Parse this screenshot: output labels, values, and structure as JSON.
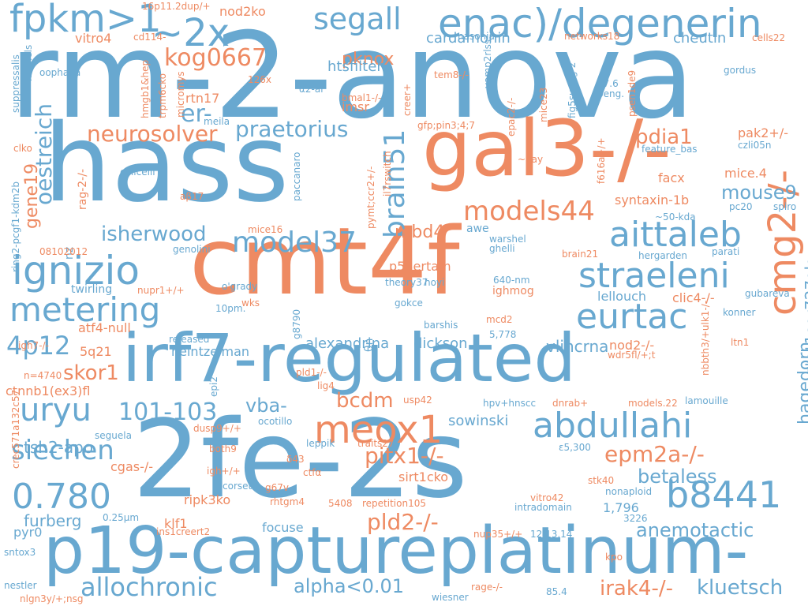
{
  "palette": {
    "blue": "#68a8d0",
    "orange": "#ee8a62"
  },
  "words": [
    {
      "text": "rm-2-anova",
      "color": "blue"
    },
    {
      "text": "hass",
      "color": "blue"
    },
    {
      "text": "cmt4f",
      "color": "orange"
    },
    {
      "text": "2fe-2s",
      "color": "blue"
    },
    {
      "text": "irf7-regulated",
      "color": "blue"
    },
    {
      "text": "gal3-/-",
      "color": "orange"
    },
    {
      "text": "p19-captureplatinum-",
      "color": "blue"
    },
    {
      "text": "enac)/degenerin",
      "color": "blue"
    },
    {
      "text": "fpkm>1",
      "color": "blue"
    },
    {
      "text": "~2x",
      "color": "blue"
    },
    {
      "text": "segall",
      "color": "blue"
    },
    {
      "text": "aittaleb",
      "color": "blue"
    },
    {
      "text": "straeleni",
      "color": "blue"
    },
    {
      "text": "eurtac",
      "color": "blue"
    },
    {
      "text": "ignizio",
      "color": "blue"
    },
    {
      "text": "metering",
      "color": "blue"
    },
    {
      "text": "abdullahi",
      "color": "blue"
    },
    {
      "text": "b8441",
      "color": "blue"
    },
    {
      "text": "cmg2-/-",
      "color": "orange"
    },
    {
      "text": "meox1",
      "color": "orange"
    },
    {
      "text": "uryu",
      "color": "blue"
    },
    {
      "text": "0.780",
      "color": "blue"
    },
    {
      "text": "siechen",
      "color": "blue"
    },
    {
      "text": "model37",
      "color": "blue"
    },
    {
      "text": "models44",
      "color": "orange"
    },
    {
      "text": "kog0667",
      "color": "orange"
    },
    {
      "text": "brain51",
      "color": "blue"
    },
    {
      "text": "neurosolver",
      "color": "orange"
    },
    {
      "text": "praetorius",
      "color": "blue"
    },
    {
      "text": "oestreich",
      "color": "blue"
    },
    {
      "text": "isherwood",
      "color": "blue"
    },
    {
      "text": "allochronic",
      "color": "blue"
    },
    {
      "text": "kluetsch",
      "color": "blue"
    },
    {
      "text": "epm2a-/-",
      "color": "orange"
    },
    {
      "text": "pitx1-/-",
      "color": "orange"
    },
    {
      "text": "pld2-/-",
      "color": "orange"
    },
    {
      "text": "4p12",
      "color": "blue"
    },
    {
      "text": "101-103",
      "color": "blue"
    },
    {
      "text": "mouse9",
      "color": "blue"
    },
    {
      "text": "pdia1",
      "color": "orange"
    },
    {
      "text": "er-",
      "color": "blue"
    },
    {
      "text": "pknox",
      "color": "orange"
    },
    {
      "text": "hagedorn",
      "color": "blue"
    },
    {
      "text": "anemotactic",
      "color": "blue"
    },
    {
      "text": "betaless",
      "color": "blue"
    },
    {
      "text": "irak4-/-",
      "color": "orange"
    },
    {
      "text": "alpha<0.01",
      "color": "blue"
    },
    {
      "text": "bcdm",
      "color": "orange"
    },
    {
      "text": "skor1",
      "color": "orange"
    },
    {
      "text": "mbd4",
      "color": "orange"
    },
    {
      "text": "gene19",
      "color": "orange"
    },
    {
      "text": "vba-",
      "color": "blue"
    },
    {
      "text": "tsh2-apo",
      "color": "blue"
    },
    {
      "text": "furberg",
      "color": "blue"
    },
    {
      "text": "stat1ser727ala",
      "color": "blue"
    },
    {
      "text": "alexandrina",
      "color": "blue"
    },
    {
      "text": "dickson",
      "color": "blue"
    },
    {
      "text": "vlincrna",
      "color": "blue"
    },
    {
      "text": "sowinski",
      "color": "blue"
    },
    {
      "text": "htsfilter",
      "color": "blue"
    },
    {
      "text": "cardamonin",
      "color": "blue"
    },
    {
      "text": "cheutin",
      "color": "blue"
    },
    {
      "text": "nod2ko",
      "color": "orange"
    },
    {
      "text": "imsr",
      "color": "orange"
    },
    {
      "text": "p53ertam",
      "color": "orange"
    },
    {
      "text": "syntaxin-1b",
      "color": "orange"
    },
    {
      "text": "facx",
      "color": "orange"
    },
    {
      "text": "mice.4",
      "color": "orange"
    },
    {
      "text": "pak2+/-",
      "color": "orange"
    },
    {
      "text": "lellouch",
      "color": "blue"
    },
    {
      "text": "clic4-/-",
      "color": "orange"
    },
    {
      "text": "nod2-/-",
      "color": "orange"
    },
    {
      "text": "atf4-null",
      "color": "orange"
    },
    {
      "text": "ctnnb1(ex3)fl",
      "color": "orange"
    },
    {
      "text": "rtn17",
      "color": "orange"
    },
    {
      "text": "vitro4",
      "color": "orange"
    },
    {
      "text": "5q21",
      "color": "orange"
    },
    {
      "text": "heintzelman",
      "color": "blue"
    },
    {
      "text": "sirt1cko",
      "color": "orange"
    },
    {
      "text": "ripk3ko",
      "color": "orange"
    },
    {
      "text": "klf1",
      "color": "orange"
    },
    {
      "text": "focuse",
      "color": "blue"
    },
    {
      "text": "cgas-/-",
      "color": "orange"
    },
    {
      "text": "pyr0",
      "color": "blue"
    },
    {
      "text": "1,796",
      "color": "blue"
    },
    {
      "text": "ighmog",
      "color": "orange"
    },
    {
      "text": "awe",
      "color": "blue"
    },
    {
      "text": "θn",
      "color": "blue"
    },
    {
      "text": "rag-2-/-",
      "color": "orange"
    },
    {
      "text": "nz",
      "color": "blue"
    },
    {
      "text": "mice16",
      "color": "orange"
    },
    {
      "text": "twirling",
      "color": "blue"
    },
    {
      "text": "nupr1+/+",
      "color": "orange"
    },
    {
      "text": "wks",
      "color": "orange"
    },
    {
      "text": "gokce",
      "color": "blue"
    },
    {
      "text": "barshis",
      "color": "blue"
    },
    {
      "text": "mcd2",
      "color": "orange"
    },
    {
      "text": "5,778",
      "color": "blue"
    },
    {
      "text": "ltn1",
      "color": "orange"
    },
    {
      "text": "konner",
      "color": "blue"
    },
    {
      "text": "gubareva",
      "color": "blue"
    },
    {
      "text": "hoyi",
      "color": "blue"
    },
    {
      "text": "640-nm",
      "color": "blue"
    },
    {
      "text": "theory37",
      "color": "blue"
    },
    {
      "text": "o'grady",
      "color": "blue"
    },
    {
      "text": "10pm.",
      "color": "blue"
    },
    {
      "text": "released",
      "color": "blue"
    },
    {
      "text": "g8790",
      "color": "blue"
    },
    {
      "text": "ghelli",
      "color": "blue"
    },
    {
      "text": "warshel",
      "color": "blue"
    },
    {
      "text": "brain21",
      "color": "orange"
    },
    {
      "text": "hergarden",
      "color": "blue"
    },
    {
      "text": "parati",
      "color": "blue"
    },
    {
      "text": "genolini",
      "color": "blue"
    },
    {
      "text": "08102012",
      "color": "orange"
    },
    {
      "text": "ring2-pcgf1-kdm2b",
      "color": "blue"
    },
    {
      "text": "aβ17",
      "color": "orange"
    },
    {
      "text": "colicelli",
      "color": "blue"
    },
    {
      "text": "paccanaro",
      "color": "blue"
    },
    {
      "text": "pymt;ccr2+/-",
      "color": "orange"
    },
    {
      "text": "il7rswitch",
      "color": "orange"
    },
    {
      "text": "~day",
      "color": "orange"
    },
    {
      "text": "f616a+/+",
      "color": "orange"
    },
    {
      "text": "feature_bas",
      "color": "blue"
    },
    {
      "text": "czli05n",
      "color": "blue"
    },
    {
      "text": "~50-kda",
      "color": "blue"
    },
    {
      "text": "pc20",
      "color": "blue"
    },
    {
      "text": "spiro",
      "color": "blue"
    },
    {
      "text": "gfp;pin3;4;7",
      "color": "orange"
    },
    {
      "text": "epac2-/-",
      "color": "orange"
    },
    {
      "text": "mice23",
      "color": "orange"
    },
    {
      "text": "fig5supfig-2",
      "color": "blue"
    },
    {
      "text": "psen1de9",
      "color": "orange"
    },
    {
      "text": "57.6",
      "color": "blue"
    },
    {
      "text": "peng.",
      "color": "blue"
    },
    {
      "text": "gordus",
      "color": "blue"
    },
    {
      "text": "vamp2rlss",
      "color": "blue"
    },
    {
      "text": "tem8-/-",
      "color": "orange"
    },
    {
      "text": "creer+",
      "color": "orange"
    },
    {
      "text": "bmal1-/-",
      "color": "orange"
    },
    {
      "text": "α2-ar",
      "color": "blue"
    },
    {
      "text": "126x",
      "color": "orange"
    },
    {
      "text": "micromys",
      "color": "orange"
    },
    {
      "text": "trpm6cko",
      "color": "orange"
    },
    {
      "text": "hmgb1&hep",
      "color": "orange"
    },
    {
      "text": "meila",
      "color": "blue"
    },
    {
      "text": "oophaga",
      "color": "blue"
    },
    {
      "text": "suppressalis",
      "color": "blue"
    },
    {
      "text": "michels",
      "color": "blue"
    },
    {
      "text": "clko",
      "color": "orange"
    },
    {
      "text": "cd114-",
      "color": "orange"
    },
    {
      "text": "16p11.2dup/+",
      "color": "orange"
    },
    {
      "text": "nasonia",
      "color": "blue"
    },
    {
      "text": "networks18",
      "color": "orange"
    },
    {
      "text": "cells22",
      "color": "orange"
    },
    {
      "text": "igh7-/-",
      "color": "orange"
    },
    {
      "text": "n=4740",
      "color": "orange"
    },
    {
      "text": "crec571a132c57",
      "color": "orange"
    },
    {
      "text": "nlgn3y/+;nsg",
      "color": "orange"
    },
    {
      "text": "nestler",
      "color": "blue"
    },
    {
      "text": "sntox3",
      "color": "blue"
    },
    {
      "text": "seguela",
      "color": "blue"
    },
    {
      "text": "epi2",
      "color": "blue"
    },
    {
      "text": "dusp9+/+",
      "color": "orange"
    },
    {
      "text": "ocotillo",
      "color": "blue"
    },
    {
      "text": "both9",
      "color": "orange"
    },
    {
      "text": "igh+/+",
      "color": "orange"
    },
    {
      "text": "corset",
      "color": "blue"
    },
    {
      "text": "0.25μm",
      "color": "blue"
    },
    {
      "text": "δ43",
      "color": "orange"
    },
    {
      "text": "g67v",
      "color": "orange"
    },
    {
      "text": "rhtgm4",
      "color": "orange"
    },
    {
      "text": "ins1creert2",
      "color": "orange"
    },
    {
      "text": "5408",
      "color": "orange"
    },
    {
      "text": "repetition105",
      "color": "orange"
    },
    {
      "text": "leppik",
      "color": "blue"
    },
    {
      "text": "traits27",
      "color": "orange"
    },
    {
      "text": "ctfα",
      "color": "orange"
    },
    {
      "text": "pld1-/-",
      "color": "orange"
    },
    {
      "text": "lig4",
      "color": "orange"
    },
    {
      "text": "usp42",
      "color": "orange"
    },
    {
      "text": "hpv+hnscc",
      "color": "blue"
    },
    {
      "text": "dnrab+",
      "color": "orange"
    },
    {
      "text": "models.22",
      "color": "orange"
    },
    {
      "text": "lamouille",
      "color": "blue"
    },
    {
      "text": "wdr5fl/+;t",
      "color": "orange"
    },
    {
      "text": "nbbth3/+ulk1-/-",
      "color": "orange"
    },
    {
      "text": "ε5,300",
      "color": "blue"
    },
    {
      "text": "stk40",
      "color": "orange"
    },
    {
      "text": "nonaploid",
      "color": "blue"
    },
    {
      "text": "vitro42",
      "color": "orange"
    },
    {
      "text": "intradomain",
      "color": "blue"
    },
    {
      "text": "3226",
      "color": "blue"
    },
    {
      "text": "nup35+/+",
      "color": "orange"
    },
    {
      "text": "12,13,14",
      "color": "blue"
    },
    {
      "text": "kpo",
      "color": "orange"
    },
    {
      "text": "rage-/-",
      "color": "orange"
    },
    {
      "text": "85.4",
      "color": "blue"
    },
    {
      "text": "wiesner",
      "color": "blue"
    }
  ]
}
